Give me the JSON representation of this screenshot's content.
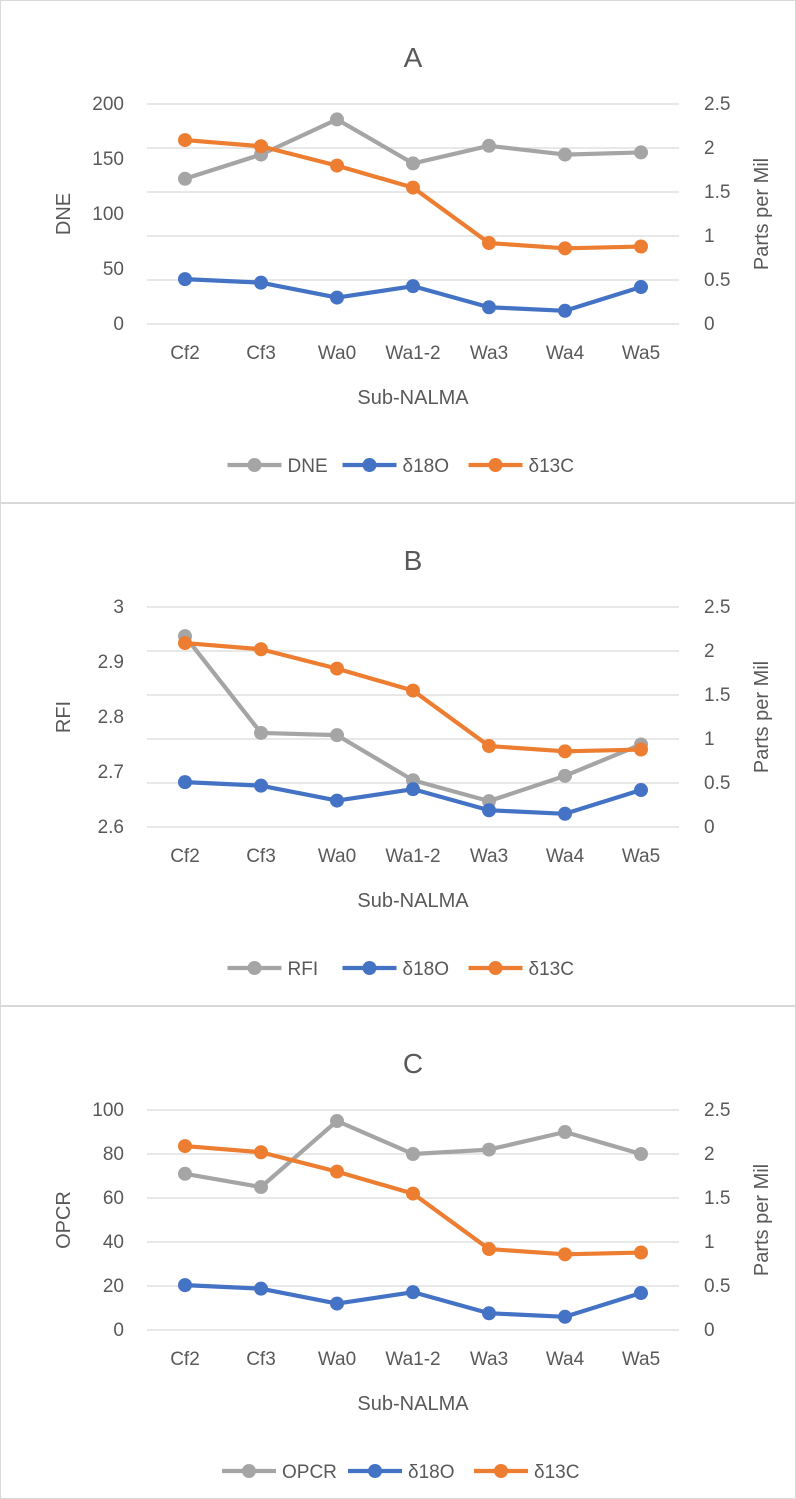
{
  "chart_data": [
    {
      "type": "line",
      "title": "A",
      "xlabel": "Sub-NALMA",
      "ylabel": "DNE",
      "y2label": "Parts per Mil",
      "categories": [
        "Cf2",
        "Cf3",
        "Wa0",
        "Wa1-2",
        "Wa3",
        "Wa4",
        "Wa5"
      ],
      "ylim": [
        0,
        200
      ],
      "yticks": [
        "0",
        "50",
        "100",
        "150",
        "200"
      ],
      "y2lim": [
        0,
        2.5
      ],
      "y2ticks": [
        "0",
        "0.5",
        "1",
        "1.5",
        "2",
        "2.5"
      ],
      "grid": true,
      "legend_position": "bottom",
      "series": [
        {
          "name": "DNE",
          "axis": "left",
          "color": "#a5a5a5",
          "values": [
            132,
            154,
            186,
            146,
            162,
            154,
            156
          ]
        },
        {
          "name": "δ18O",
          "axis": "right",
          "color": "#4472c4",
          "values": [
            0.51,
            0.47,
            0.3,
            0.43,
            0.19,
            0.15,
            0.42
          ]
        },
        {
          "name": "δ13C",
          "axis": "right",
          "color": "#ed7d31",
          "values": [
            2.09,
            2.02,
            1.8,
            1.55,
            0.92,
            0.86,
            0.88
          ]
        }
      ]
    },
    {
      "type": "line",
      "title": "B",
      "xlabel": "Sub-NALMA",
      "ylabel": "RFI",
      "y2label": "Parts per Mil",
      "categories": [
        "Cf2",
        "Cf3",
        "Wa0",
        "Wa1-2",
        "Wa3",
        "Wa4",
        "Wa5"
      ],
      "ylim": [
        2.6,
        3.0
      ],
      "yticks": [
        "2.6",
        "2.7",
        "2.8",
        "2.9",
        "3"
      ],
      "y2lim": [
        0,
        2.5
      ],
      "y2ticks": [
        "0",
        "0.5",
        "1",
        "1.5",
        "2",
        "2.5"
      ],
      "grid": true,
      "legend_position": "bottom",
      "series": [
        {
          "name": "RFI",
          "axis": "left",
          "color": "#a5a5a5",
          "values": [
            2.947,
            2.771,
            2.767,
            2.685,
            2.647,
            2.693,
            2.75
          ]
        },
        {
          "name": "δ18O",
          "axis": "right",
          "color": "#4472c4",
          "values": [
            0.51,
            0.47,
            0.3,
            0.43,
            0.19,
            0.15,
            0.42
          ]
        },
        {
          "name": "δ13C",
          "axis": "right",
          "color": "#ed7d31",
          "values": [
            2.09,
            2.02,
            1.8,
            1.55,
            0.92,
            0.86,
            0.88
          ]
        }
      ]
    },
    {
      "type": "line",
      "title": "C",
      "xlabel": "Sub-NALMA",
      "ylabel": "OPCR",
      "y2label": "Parts per Mil",
      "categories": [
        "Cf2",
        "Cf3",
        "Wa0",
        "Wa1-2",
        "Wa3",
        "Wa4",
        "Wa5"
      ],
      "ylim": [
        0,
        100
      ],
      "yticks": [
        "0",
        "20",
        "40",
        "60",
        "80",
        "100"
      ],
      "y2lim": [
        0,
        2.5
      ],
      "y2ticks": [
        "0",
        "0.5",
        "1",
        "1.5",
        "2",
        "2.5"
      ],
      "grid": true,
      "legend_position": "bottom",
      "series": [
        {
          "name": "OPCR",
          "axis": "left",
          "color": "#a5a5a5",
          "values": [
            71,
            65,
            95,
            80,
            82,
            90,
            80
          ]
        },
        {
          "name": "δ18O",
          "axis": "right",
          "color": "#4472c4",
          "values": [
            0.51,
            0.47,
            0.3,
            0.43,
            0.19,
            0.15,
            0.42
          ]
        },
        {
          "name": "δ13C",
          "axis": "right",
          "color": "#ed7d31",
          "values": [
            2.09,
            2.02,
            1.8,
            1.55,
            0.92,
            0.86,
            0.88
          ]
        }
      ]
    }
  ]
}
